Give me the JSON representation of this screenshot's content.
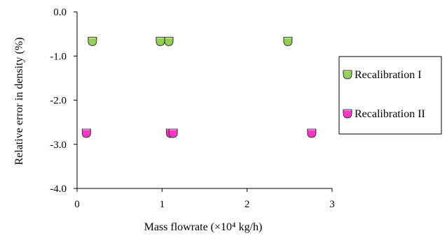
{
  "chart_data": {
    "type": "scatter",
    "title": "",
    "xlabel": "Mass flowrate (×10⁴ kg/h)",
    "ylabel": "Relative error in density (%)",
    "xlim": [
      0,
      3
    ],
    "ylim": [
      -4.0,
      0.0
    ],
    "x_ticks": [
      0,
      1,
      2,
      3
    ],
    "x_tick_labels": [
      "0",
      "1",
      "2",
      "3"
    ],
    "y_ticks": [
      0.0,
      -1.0,
      -2.0,
      -3.0,
      -4.0
    ],
    "y_tick_labels": [
      "0.0",
      "-1.0",
      "-2.0",
      "-3.0",
      "-4.0"
    ],
    "grid": false,
    "legend_position": "right",
    "series": [
      {
        "name": "Recalibration I",
        "color": "#92D050",
        "x": [
          0.18,
          0.98,
          1.08,
          2.48
        ],
        "y": [
          -0.67,
          -0.67,
          -0.67,
          -0.67
        ]
      },
      {
        "name": "Recalibration II",
        "color": "#FF33CC",
        "x": [
          0.11,
          1.1,
          1.13,
          2.76
        ],
        "y": [
          -2.75,
          -2.75,
          -2.75,
          -2.75
        ]
      }
    ]
  }
}
